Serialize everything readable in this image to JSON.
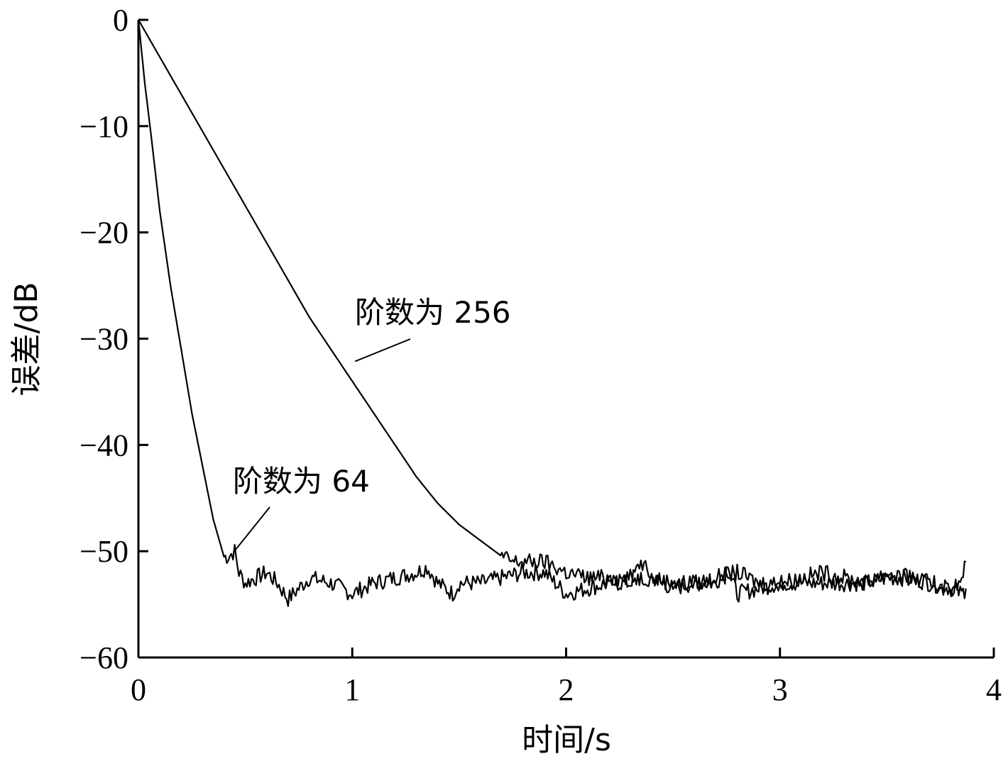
{
  "chart_data": {
    "type": "line",
    "xlabel": "时间/s",
    "ylabel": "误差/dB",
    "xlim": [
      0,
      4
    ],
    "ylim": [
      -60,
      0
    ],
    "xticks": [
      0,
      1,
      2,
      3,
      4
    ],
    "yticks": [
      0,
      -10,
      -20,
      -30,
      -40,
      -50,
      -60
    ],
    "xtick_labels": [
      "0",
      "1",
      "2",
      "3",
      "4"
    ],
    "ytick_labels": [
      "0",
      "−10",
      "−20",
      "−30",
      "−40",
      "−50",
      "−60"
    ],
    "grid": false,
    "series": [
      {
        "name": "阶数为 64",
        "x": [
          0,
          0.03,
          0.06,
          0.1,
          0.15,
          0.2,
          0.25,
          0.3,
          0.35,
          0.4,
          0.42,
          0.45,
          0.47,
          0.5,
          0.55,
          0.6,
          0.65,
          0.7,
          0.75,
          0.8,
          0.9,
          1.0,
          1.1,
          1.2,
          1.3,
          1.35,
          1.4,
          1.47,
          1.5,
          1.6,
          1.7,
          1.8,
          1.9,
          2.0,
          2.1,
          2.2,
          2.3,
          2.35,
          2.4,
          2.5,
          2.6,
          2.7,
          2.75,
          2.8,
          2.9,
          3.0,
          3.1,
          3.2,
          3.3,
          3.4,
          3.5,
          3.6,
          3.7,
          3.8,
          3.85,
          3.87
        ],
        "y": [
          0,
          -6,
          -11,
          -18,
          -25,
          -31,
          -37,
          -42,
          -47,
          -50.5,
          -50.5,
          -50,
          -52,
          -53,
          -52.5,
          -52,
          -53,
          -54.5,
          -53.5,
          -52.5,
          -53,
          -54,
          -53,
          -52.5,
          -52,
          -51.5,
          -53,
          -54,
          -53,
          -53,
          -52.5,
          -52,
          -52,
          -54,
          -53.5,
          -53,
          -53,
          -51,
          -52.5,
          -53.5,
          -53,
          -53,
          -51.5,
          -54,
          -53.5,
          -53,
          -53,
          -53,
          -53,
          -53,
          -52.5,
          -52.5,
          -53,
          -53.5,
          -54,
          -53.5
        ]
      },
      {
        "name": "阶数为 256",
        "x": [
          0,
          0.1,
          0.2,
          0.3,
          0.4,
          0.5,
          0.6,
          0.7,
          0.8,
          0.9,
          1.0,
          1.1,
          1.2,
          1.3,
          1.4,
          1.5,
          1.6,
          1.7,
          1.75,
          1.8,
          1.9,
          2.0,
          2.1,
          2.2,
          2.3,
          2.4,
          2.5,
          2.6,
          2.7,
          2.8,
          2.9,
          3.0,
          3.1,
          3.2,
          3.3,
          3.4,
          3.5,
          3.6,
          3.7,
          3.8,
          3.85,
          3.87
        ],
        "y": [
          0,
          -3.5,
          -7,
          -10.5,
          -14,
          -17.5,
          -21,
          -24.5,
          -28,
          -31,
          -34,
          -37,
          -40,
          -43,
          -45.5,
          -47.5,
          -49,
          -50.5,
          -51,
          -51,
          -51,
          -52,
          -52.5,
          -52.5,
          -52.5,
          -52.5,
          -53,
          -53,
          -52.5,
          -52,
          -53,
          -53,
          -52.5,
          -52,
          -52.5,
          -53,
          -52,
          -52.5,
          -53,
          -53.5,
          -53,
          -51
        ]
      }
    ],
    "annotations": [
      {
        "text": "阶数为 256",
        "series": "阶数为 256",
        "at_x": 1.0,
        "at_y": -32
      },
      {
        "text": "阶数为 64",
        "series": "阶数为 64",
        "at_x": 0.43,
        "at_y": -50
      }
    ]
  }
}
